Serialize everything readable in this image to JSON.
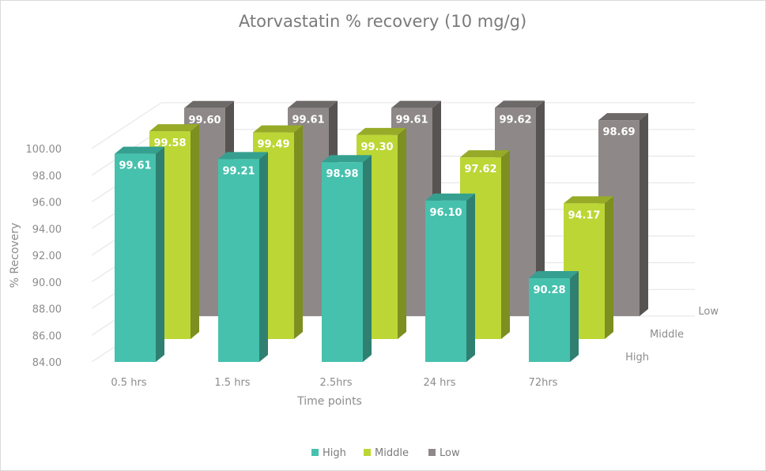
{
  "chart_data": {
    "type": "bar",
    "title": "Atorvastatin % recovery (10 mg/g)",
    "xlabel": "Time points",
    "ylabel": "% Recovery",
    "ylim": [
      84,
      100
    ],
    "yticks": [
      "84.00",
      "86.00",
      "88.00",
      "90.00",
      "92.00",
      "94.00",
      "96.00",
      "98.00",
      "100.00"
    ],
    "categories": [
      "0.5 hrs",
      "1.5 hrs",
      "2.5hrs",
      "24 hrs",
      "72hrs"
    ],
    "depth_labels": [
      "High",
      "Middle",
      "Low"
    ],
    "series": [
      {
        "name": "High",
        "values": [
          99.61,
          99.21,
          98.98,
          96.1,
          90.28
        ],
        "labels": [
          "99.61",
          "99.21",
          "98.98",
          "96.10",
          "90.28"
        ]
      },
      {
        "name": "Middle",
        "values": [
          99.58,
          99.49,
          99.3,
          97.62,
          94.17
        ],
        "labels": [
          "99.58",
          "99.49",
          "99.30",
          "97.62",
          "94.17"
        ]
      },
      {
        "name": "Low",
        "values": [
          99.6,
          99.61,
          99.61,
          99.62,
          98.69
        ],
        "labels": [
          "99.60",
          "99.61",
          "99.61",
          "99.62",
          "98.69"
        ]
      }
    ],
    "colors": {
      "High": {
        "front": "#46c1ad",
        "side": "#2f8070",
        "top": "#35a090"
      },
      "Middle": {
        "front": "#bcd635",
        "side": "#7d8f20",
        "top": "#97ab28"
      },
      "Low": {
        "front": "#8e8888",
        "side": "#585353",
        "top": "#6e6969"
      }
    },
    "legend_position": "bottom",
    "grid": true
  }
}
